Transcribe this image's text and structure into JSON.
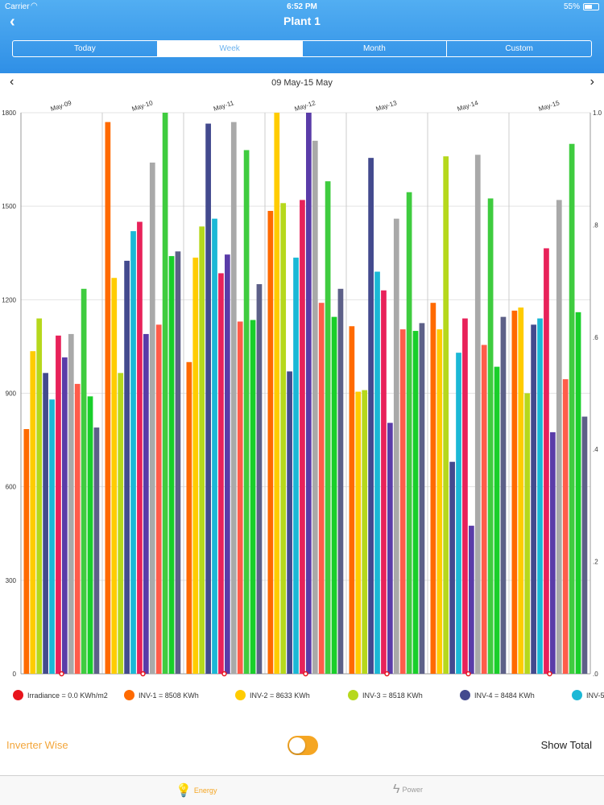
{
  "status": {
    "carrier": "Carrier",
    "time": "6:52 PM",
    "battery": "55%"
  },
  "header": {
    "back": "‹",
    "title": "Plant 1"
  },
  "tabs": [
    {
      "label": "Today"
    },
    {
      "label": "Week",
      "active": true
    },
    {
      "label": "Month"
    },
    {
      "label": "Custom"
    }
  ],
  "range": {
    "label": "09 May-15 May",
    "prev": "‹",
    "next": "›"
  },
  "chart_data": {
    "type": "bar",
    "categories": [
      "May-09",
      "May-10",
      "May-11",
      "May-12",
      "May-13",
      "May-14",
      "May-15"
    ],
    "y_left": {
      "ylim": [
        0,
        1800
      ],
      "ticks": [
        "0",
        "300",
        "600",
        "900",
        "1200",
        "1500",
        "1800"
      ]
    },
    "y_right": {
      "ylim": [
        0,
        1.0
      ],
      "ticks": [
        ".0",
        ".2",
        ".4",
        ".6",
        ".8",
        "1.0"
      ]
    },
    "grid": true,
    "series": [
      {
        "color": "#ff6a00",
        "values": [
          785,
          1770,
          1000,
          1485,
          1115,
          1190,
          1165
        ]
      },
      {
        "color": "#ffcc00",
        "values": [
          1035,
          1270,
          1335,
          1805,
          905,
          1105,
          1175
        ]
      },
      {
        "color": "#b6d81c",
        "values": [
          1140,
          965,
          1435,
          1510,
          910,
          1660,
          900
        ]
      },
      {
        "color": "#434a8e",
        "values": [
          965,
          1325,
          1765,
          970,
          1655,
          680,
          1120
        ]
      },
      {
        "color": "#1bb8d6",
        "values": [
          880,
          1420,
          1460,
          1335,
          1290,
          1030,
          1140
        ]
      },
      {
        "color": "#e8225a",
        "values": [
          1085,
          1450,
          1285,
          1520,
          1230,
          1140,
          1365
        ]
      },
      {
        "color": "#5a3ca8",
        "values": [
          1015,
          1090,
          1345,
          1825,
          805,
          475,
          775
        ]
      },
      {
        "color": "#a9a9a9",
        "values": [
          1090,
          1640,
          1770,
          1710,
          1460,
          1665,
          1520
        ]
      },
      {
        "color": "#ff5c4a",
        "values": [
          930,
          1120,
          1130,
          1190,
          1105,
          1055,
          945
        ]
      },
      {
        "color": "#3fcc3f",
        "values": [
          1235,
          1825,
          1680,
          1580,
          1545,
          1525,
          1700
        ]
      },
      {
        "color": "#19cf2a",
        "values": [
          890,
          1340,
          1135,
          1145,
          1100,
          985,
          1160
        ]
      },
      {
        "color": "#5d6088",
        "values": [
          790,
          1355,
          1250,
          1235,
          1125,
          1145,
          825
        ]
      }
    ],
    "irradiance": [
      0,
      0,
      0,
      0,
      0,
      0,
      0
    ]
  },
  "legend": [
    {
      "label": "Irradiance = 0.0 KWh/m2",
      "color": "#e8141c"
    },
    {
      "label": "INV-1 = 8508 KWh",
      "color": "#ff6a00"
    },
    {
      "label": "INV-2 = 8633 KWh",
      "color": "#ffcc00"
    },
    {
      "label": "INV-3 = 8518 KWh",
      "color": "#b6d81c"
    },
    {
      "label": "INV-4 = 8484 KWh",
      "color": "#434a8e"
    },
    {
      "label": "INV-5",
      "color": "#1bb8d6"
    }
  ],
  "footer": {
    "inverter_wise": "Inverter Wise",
    "toggle_on": true,
    "show_total": "Show Total"
  },
  "tabbar": [
    {
      "label": "Energy",
      "icon": "bulb-icon",
      "color": "#f5a623"
    },
    {
      "label": "Power",
      "icon": "bolt-icon",
      "color": "#9a9a9a"
    }
  ]
}
